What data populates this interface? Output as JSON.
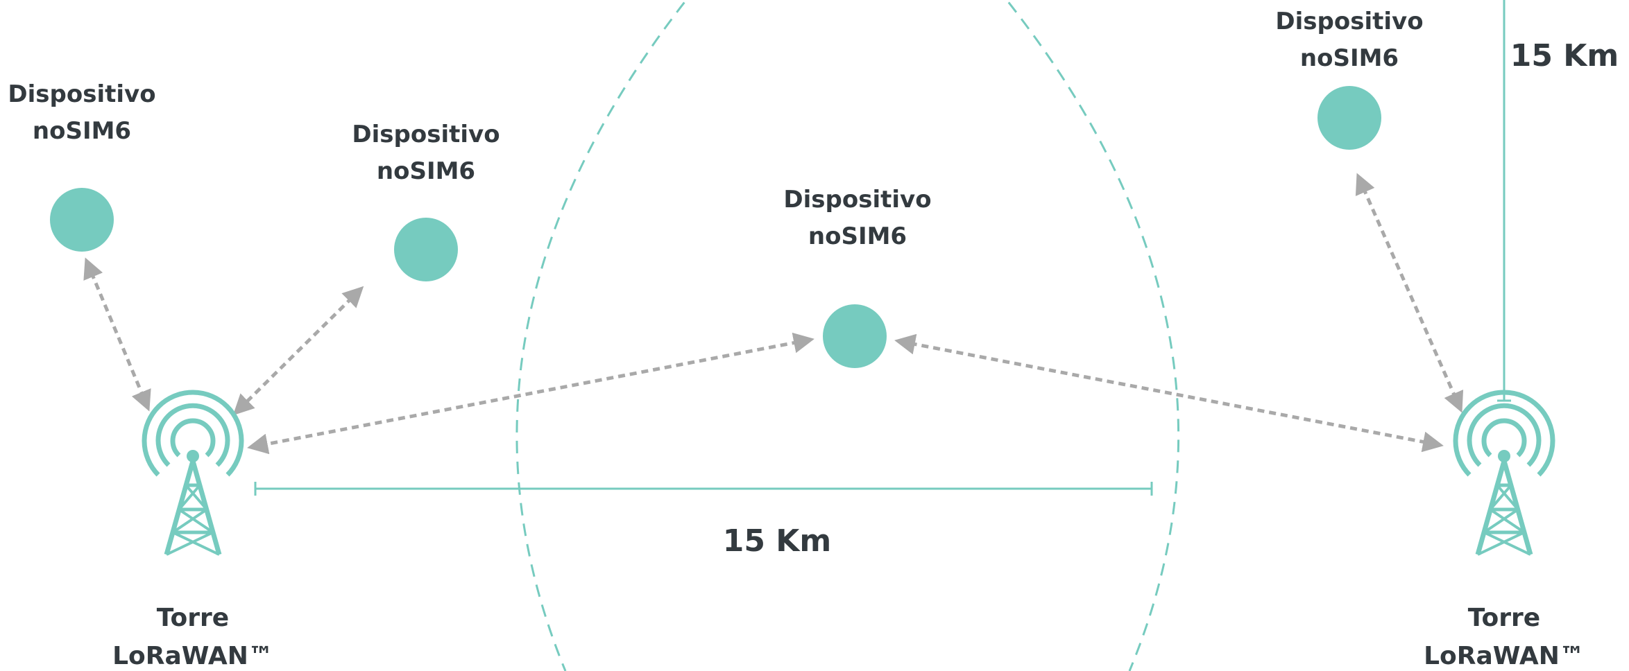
{
  "colors": {
    "accent": "#76cbbf",
    "link": "#a9a9a9",
    "text": "#333a3f",
    "background": "#ffffff"
  },
  "devices": [
    {
      "id": "device-1",
      "name": "Dispositivo",
      "model": "noSIM6"
    },
    {
      "id": "device-2",
      "name": "Dispositivo",
      "model": "noSIM6"
    },
    {
      "id": "device-3",
      "name": "Dispositivo",
      "model": "noSIM6"
    },
    {
      "id": "device-4",
      "name": "Dispositivo",
      "model": "noSIM6"
    }
  ],
  "towers": [
    {
      "id": "tower-left",
      "name": "Torre",
      "model": "LoRaWAN™",
      "icon": "radio-tower-icon"
    },
    {
      "id": "tower-right",
      "name": "Torre",
      "model": "LoRaWAN™",
      "icon": "radio-tower-icon"
    }
  ],
  "distances": {
    "horizontal": "15 Km",
    "vertical": "15 Km"
  }
}
